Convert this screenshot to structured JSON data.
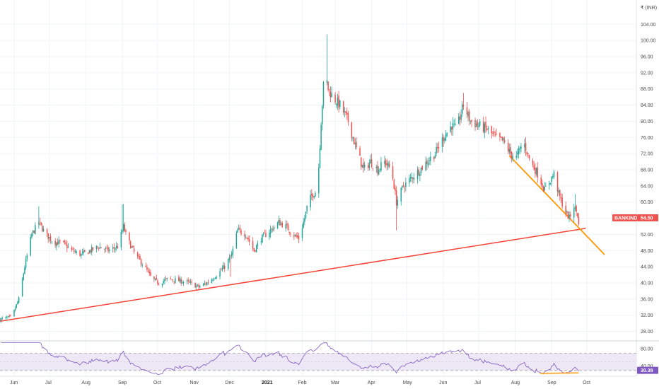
{
  "chart_data": {
    "type": "candlestick",
    "symbol": "BANKINDIA",
    "currency_label": "INR",
    "last_price": "54.50",
    "rsi_value": "30.39",
    "colors": {
      "up": "#26a69a",
      "down": "#ef5350",
      "price_badge": "#ef5350",
      "rsi_line": "#7e57c2",
      "rsi_band": "#ede7f6",
      "rsi_badge": "#7e57c2",
      "support_line": "#f44336",
      "channel_line": "#ff9800",
      "grid": "#f0f3fa",
      "axis_text": "#4a4a4a"
    },
    "y_ticks": [
      "104.00",
      "100.00",
      "96.00",
      "92.00",
      "88.00",
      "84.00",
      "80.00",
      "76.00",
      "72.00",
      "68.00",
      "64.00",
      "60.00",
      "56.00",
      "52.00",
      "48.00",
      "44.00",
      "40.00",
      "36.00",
      "32.00",
      "28.00"
    ],
    "y_tick_values": [
      104,
      100,
      96,
      92,
      88,
      84,
      80,
      76,
      72,
      68,
      64,
      60,
      56,
      52,
      48,
      44,
      40,
      36,
      32,
      28
    ],
    "ylim": [
      26,
      110
    ],
    "x_ticks": [
      {
        "label": "Jun",
        "date": "2020-06-01",
        "bold": false
      },
      {
        "label": "Jul",
        "date": "2020-07-01",
        "bold": false
      },
      {
        "label": "Aug",
        "date": "2020-08-01",
        "bold": false
      },
      {
        "label": "Sep",
        "date": "2020-09-01",
        "bold": false
      },
      {
        "label": "Oct",
        "date": "2020-10-01",
        "bold": false
      },
      {
        "label": "Nov",
        "date": "2020-11-01",
        "bold": false
      },
      {
        "label": "Dec",
        "date": "2020-12-01",
        "bold": false
      },
      {
        "label": "2021",
        "date": "2021-01-01",
        "bold": true
      },
      {
        "label": "Feb",
        "date": "2021-02-01",
        "bold": false
      },
      {
        "label": "Mar",
        "date": "2021-03-01",
        "bold": false
      },
      {
        "label": "Apr",
        "date": "2021-04-01",
        "bold": false
      },
      {
        "label": "May",
        "date": "2021-05-01",
        "bold": false
      },
      {
        "label": "Jun",
        "date": "2021-06-01",
        "bold": false
      },
      {
        "label": "Jul",
        "date": "2021-07-01",
        "bold": false
      },
      {
        "label": "Aug",
        "date": "2021-08-01",
        "bold": false
      },
      {
        "label": "Sep",
        "date": "2021-09-01",
        "bold": false
      },
      {
        "label": "Oct",
        "date": "2021-10-01",
        "bold": false
      }
    ],
    "x_range": [
      "2020-05-20",
      "2021-10-25"
    ],
    "price_anchors": [
      [
        "2020-05-20",
        31
      ],
      [
        "2020-05-30",
        31.5
      ],
      [
        "2020-06-05",
        36
      ],
      [
        "2020-06-10",
        44
      ],
      [
        "2020-06-16",
        52
      ],
      [
        "2020-06-22",
        55
      ],
      [
        "2020-06-28",
        52
      ],
      [
        "2020-07-05",
        50
      ],
      [
        "2020-07-12",
        50
      ],
      [
        "2020-07-20",
        48
      ],
      [
        "2020-07-28",
        47
      ],
      [
        "2020-08-05",
        48
      ],
      [
        "2020-08-12",
        49
      ],
      [
        "2020-08-20",
        48
      ],
      [
        "2020-08-28",
        49
      ],
      [
        "2020-09-02",
        54
      ],
      [
        "2020-09-05",
        51
      ],
      [
        "2020-09-12",
        47
      ],
      [
        "2020-09-20",
        44
      ],
      [
        "2020-09-26",
        41
      ],
      [
        "2020-10-02",
        40
      ],
      [
        "2020-10-10",
        41
      ],
      [
        "2020-10-20",
        40.5
      ],
      [
        "2020-10-28",
        40
      ],
      [
        "2020-11-05",
        39
      ],
      [
        "2020-11-12",
        40
      ],
      [
        "2020-11-20",
        42
      ],
      [
        "2020-11-27",
        44
      ],
      [
        "2020-12-03",
        47
      ],
      [
        "2020-12-08",
        53
      ],
      [
        "2020-12-15",
        52
      ],
      [
        "2020-12-22",
        48
      ],
      [
        "2020-12-28",
        51
      ],
      [
        "2021-01-05",
        53
      ],
      [
        "2021-01-12",
        55
      ],
      [
        "2021-01-18",
        54
      ],
      [
        "2021-01-24",
        52
      ],
      [
        "2021-01-29",
        51
      ],
      [
        "2021-02-03",
        56
      ],
      [
        "2021-02-06",
        60
      ],
      [
        "2021-02-10",
        62
      ],
      [
        "2021-02-14",
        63
      ],
      [
        "2021-02-17",
        80
      ],
      [
        "2021-02-20",
        93
      ],
      [
        "2021-02-23",
        88
      ],
      [
        "2021-02-27",
        86
      ],
      [
        "2021-03-05",
        84
      ],
      [
        "2021-03-12",
        80
      ],
      [
        "2021-03-18",
        74
      ],
      [
        "2021-03-25",
        68
      ],
      [
        "2021-03-31",
        70
      ],
      [
        "2021-04-06",
        68
      ],
      [
        "2021-04-12",
        70
      ],
      [
        "2021-04-18",
        68
      ],
      [
        "2021-04-22",
        60
      ],
      [
        "2021-04-28",
        64
      ],
      [
        "2021-05-05",
        66
      ],
      [
        "2021-05-12",
        68
      ],
      [
        "2021-05-18",
        70
      ],
      [
        "2021-05-25",
        72
      ],
      [
        "2021-06-01",
        76
      ],
      [
        "2021-06-08",
        79
      ],
      [
        "2021-06-12",
        78
      ],
      [
        "2021-06-18",
        84
      ],
      [
        "2021-06-24",
        80
      ],
      [
        "2021-07-01",
        79
      ],
      [
        "2021-07-08",
        78
      ],
      [
        "2021-07-15",
        76
      ],
      [
        "2021-07-22",
        75
      ],
      [
        "2021-07-28",
        72
      ],
      [
        "2021-08-02",
        71
      ],
      [
        "2021-08-08",
        75
      ],
      [
        "2021-08-14",
        70
      ],
      [
        "2021-08-20",
        67
      ],
      [
        "2021-08-26",
        63
      ],
      [
        "2021-08-30",
        65
      ],
      [
        "2021-09-03",
        67
      ],
      [
        "2021-09-07",
        62
      ],
      [
        "2021-09-12",
        58
      ],
      [
        "2021-09-16",
        56
      ],
      [
        "2021-09-20",
        59
      ],
      [
        "2021-09-23",
        57
      ],
      [
        "2021-09-26",
        54.5
      ]
    ],
    "support_line": [
      [
        "2020-05-20",
        30.5
      ],
      [
        "2021-09-30",
        53.5
      ]
    ],
    "channel_line": [
      [
        "2021-07-27",
        71.5
      ],
      [
        "2021-10-16",
        47
      ]
    ],
    "rsi": {
      "ticks": [
        "80.00",
        "40.00"
      ],
      "tick_values": [
        80,
        40
      ],
      "ylim": [
        20,
        95
      ],
      "band": [
        30,
        70
      ],
      "divergence_line": [
        [
          "2021-08-22",
          23.5
        ],
        [
          "2021-09-24",
          24.5
        ]
      ]
    }
  }
}
